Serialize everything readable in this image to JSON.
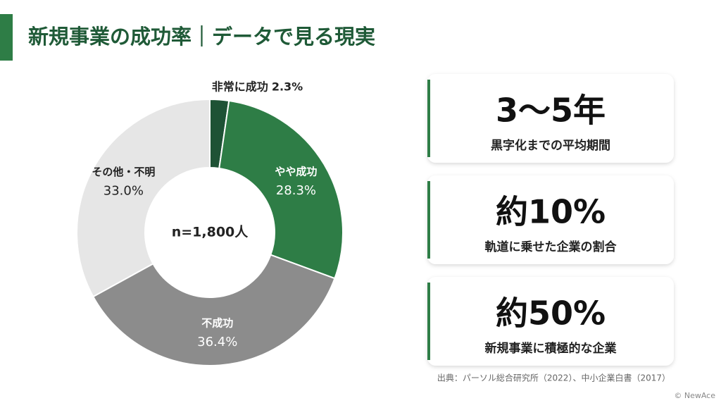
{
  "title": "新規事業の成功率｜データで見る現実",
  "chart_data": {
    "type": "donut",
    "categories": [
      "非常に成功",
      "やや成功",
      "不成功",
      "その他・不明"
    ],
    "values": [
      2.3,
      28.3,
      36.4,
      33.0
    ],
    "value_labels": [
      "2.3%",
      "28.3%",
      "36.4%",
      "33.0%"
    ],
    "colors": [
      "#1e5235",
      "#2e7d46",
      "#8c8c8c",
      "#e6e6e6"
    ],
    "center_label": "n=1,800人"
  },
  "cards": [
    {
      "stat": "3〜5年",
      "caption": "黒字化までの平均期間"
    },
    {
      "stat": "約10%",
      "caption": "軌道に乗せた企業の割合"
    },
    {
      "stat": "約50%",
      "caption": "新規事業に積極的な企業"
    }
  ],
  "source": "出典：パーソル総合研究所（2022）、中小企業白書（2017）",
  "copyright": "© NewAce"
}
